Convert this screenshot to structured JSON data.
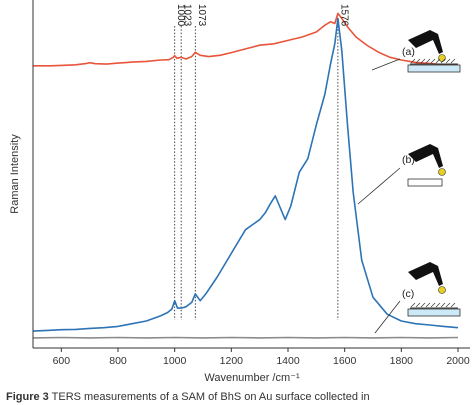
{
  "chart_data": {
    "type": "line",
    "xlabel": "Wavenumber /cm⁻¹",
    "ylabel": "Raman Intensity",
    "xlim": [
      500,
      2000
    ],
    "ylim": [
      0,
      1
    ],
    "x_ticks": [
      600,
      800,
      1000,
      1200,
      1400,
      1600,
      1800,
      2000
    ],
    "peak_markers": [
      {
        "x": 1000,
        "label": "1000"
      },
      {
        "x": 1023,
        "label": "1023"
      },
      {
        "x": 1073,
        "label": "1073"
      },
      {
        "x": 1576,
        "label": "1576"
      }
    ],
    "series": [
      {
        "name": "(a)",
        "color": "#e8553b",
        "x": [
          500,
          560,
          600,
          650,
          690,
          700,
          720,
          760,
          800,
          850,
          900,
          950,
          980,
          995,
          1000,
          1008,
          1023,
          1040,
          1060,
          1073,
          1090,
          1120,
          1160,
          1200,
          1250,
          1300,
          1350,
          1400,
          1450,
          1500,
          1530,
          1550,
          1565,
          1576,
          1590,
          1610,
          1640,
          1680,
          1720,
          1760,
          1800,
          1850,
          1900,
          1950,
          2000
        ],
        "y": [
          0.835,
          0.835,
          0.836,
          0.838,
          0.842,
          0.844,
          0.841,
          0.84,
          0.843,
          0.846,
          0.848,
          0.852,
          0.853,
          0.86,
          0.865,
          0.857,
          0.86,
          0.855,
          0.862,
          0.875,
          0.866,
          0.862,
          0.866,
          0.874,
          0.885,
          0.896,
          0.9,
          0.91,
          0.92,
          0.935,
          0.955,
          0.965,
          0.96,
          0.99,
          0.975,
          0.95,
          0.92,
          0.895,
          0.875,
          0.86,
          0.852,
          0.845,
          0.842,
          0.838,
          0.836
        ]
      },
      {
        "name": "(b)",
        "color": "#2d74b7",
        "x": [
          500,
          550,
          600,
          650,
          700,
          750,
          800,
          850,
          900,
          950,
          975,
          990,
          1000,
          1010,
          1023,
          1040,
          1060,
          1073,
          1090,
          1110,
          1150,
          1200,
          1250,
          1300,
          1320,
          1340,
          1355,
          1370,
          1390,
          1410,
          1440,
          1470,
          1500,
          1530,
          1550,
          1565,
          1576,
          1590,
          1610,
          1630,
          1660,
          1700,
          1750,
          1800,
          1850,
          1900,
          1950,
          2000
        ],
        "y": [
          0.05,
          0.052,
          0.054,
          0.055,
          0.058,
          0.06,
          0.064,
          0.072,
          0.08,
          0.095,
          0.105,
          0.115,
          0.14,
          0.118,
          0.118,
          0.122,
          0.135,
          0.16,
          0.14,
          0.16,
          0.21,
          0.28,
          0.35,
          0.38,
          0.4,
          0.43,
          0.45,
          0.42,
          0.38,
          0.42,
          0.52,
          0.56,
          0.66,
          0.75,
          0.84,
          0.9,
          0.975,
          0.88,
          0.66,
          0.46,
          0.26,
          0.15,
          0.1,
          0.08,
          0.072,
          0.068,
          0.064,
          0.06
        ]
      },
      {
        "name": "(c)",
        "color": "#8b8b8b",
        "x": [
          500,
          600,
          700,
          800,
          900,
          1000,
          1100,
          1200,
          1300,
          1400,
          1500,
          1600,
          1700,
          1800,
          1900,
          2000
        ],
        "y": [
          0.03,
          0.031,
          0.03,
          0.031,
          0.03,
          0.031,
          0.03,
          0.031,
          0.03,
          0.031,
          0.03,
          0.031,
          0.03,
          0.031,
          0.03,
          0.031
        ]
      }
    ]
  },
  "caption": {
    "bold": "Figure 3",
    "text": " TERS measurements of a SAM of BhS on Au surface collected in"
  }
}
